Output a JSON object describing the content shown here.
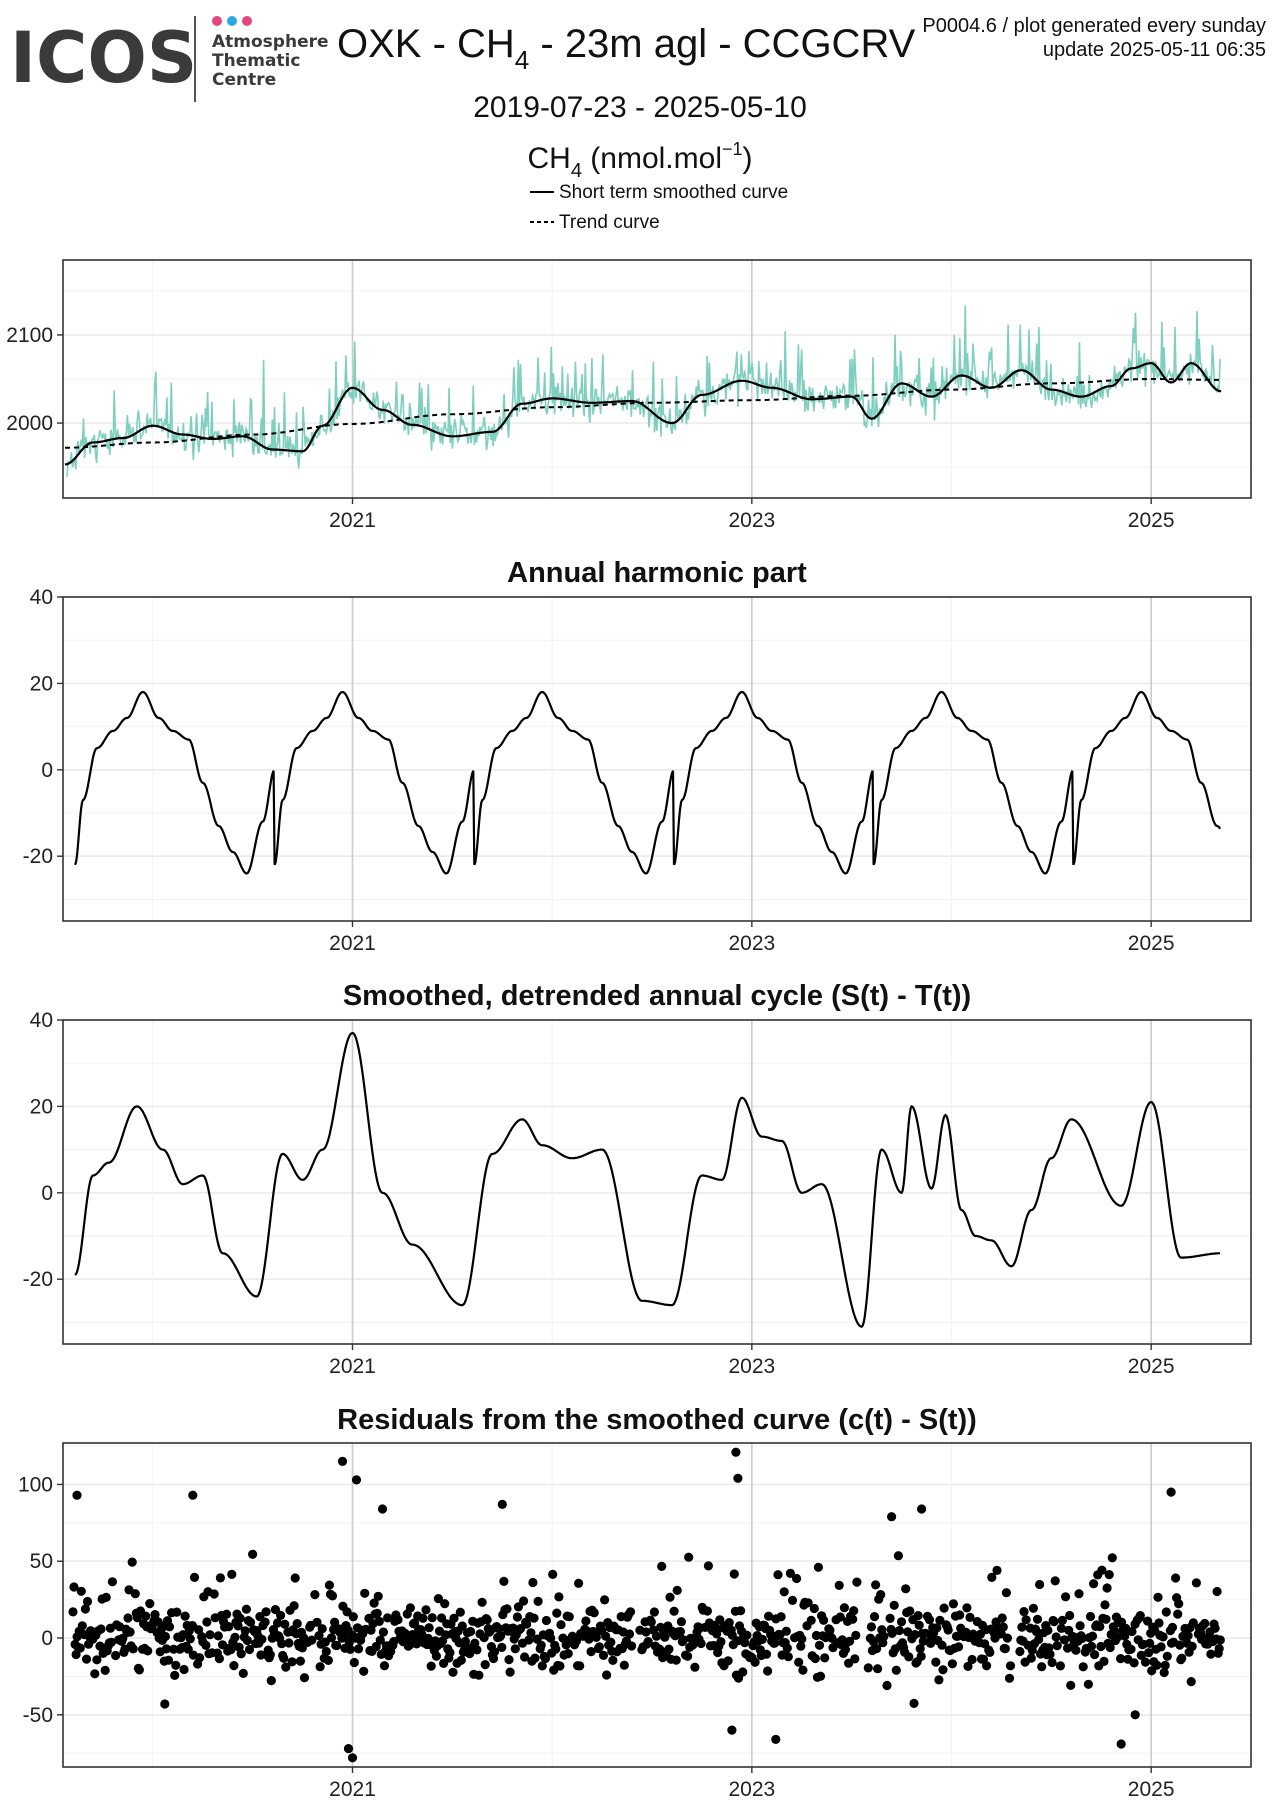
{
  "header": {
    "logo": {
      "word": "ICOS",
      "sub": [
        "Atmosphere",
        "Thematic",
        "Centre"
      ],
      "dot_colors": [
        "#e4467a",
        "#2aa8e0",
        "#e4467a"
      ]
    },
    "title_main": "OXK - CH",
    "title_sub": "4",
    "title_rest": " - 23m agl - CCGCRV",
    "meta_line1": "P0004.6 / plot generated every sunday",
    "meta_line2": "update  2025-05-11 06:35",
    "date_range": "2019-07-23 - 2025-05-10",
    "unit_main": "CH",
    "unit_sub": "4",
    "unit_mid": " (nmol.mol",
    "unit_sup": "−1",
    "unit_end": ")"
  },
  "legend": {
    "solid": "Short term smoothed curve",
    "dashed": "Trend curve"
  },
  "colors": {
    "obs": "#7ecfbf",
    "line": "#000000",
    "grid_major": "#cccccc",
    "grid_minor": "#ebebeb"
  },
  "chart_data": [
    {
      "type": "line",
      "title": "",
      "x_range": [
        2019.55,
        2025.5
      ],
      "ylim": [
        1915,
        2185
      ],
      "yticks": [
        2000,
        2100
      ],
      "xticks": [
        2021,
        2023,
        2025
      ],
      "series": [
        {
          "name": "Short term smoothed curve",
          "style": "solid",
          "x": [
            2019.56,
            2019.7,
            2019.85,
            2020.0,
            2020.15,
            2020.3,
            2020.45,
            2020.6,
            2020.75,
            2020.85,
            2021.0,
            2021.15,
            2021.3,
            2021.5,
            2021.7,
            2021.85,
            2022.0,
            2022.2,
            2022.4,
            2022.6,
            2022.75,
            2022.95,
            2023.1,
            2023.3,
            2023.5,
            2023.6,
            2023.75,
            2023.9,
            2024.05,
            2024.2,
            2024.35,
            2024.5,
            2024.65,
            2024.8,
            2024.9,
            2025.0,
            2025.1,
            2025.2,
            2025.35
          ],
          "y": [
            1953,
            1978,
            1983,
            1997,
            1987,
            1982,
            1985,
            1970,
            1968,
            1997,
            2040,
            2015,
            1998,
            1985,
            1990,
            2022,
            2028,
            2023,
            2025,
            2000,
            2032,
            2048,
            2040,
            2027,
            2030,
            2005,
            2045,
            2030,
            2054,
            2040,
            2060,
            2038,
            2030,
            2042,
            2062,
            2068,
            2046,
            2068,
            2036
          ]
        },
        {
          "name": "Trend curve",
          "style": "dashed",
          "x": [
            2019.56,
            2020.0,
            2020.5,
            2021.0,
            2021.5,
            2022.0,
            2022.5,
            2023.0,
            2023.5,
            2024.0,
            2024.5,
            2025.0,
            2025.35
          ],
          "y": [
            1972,
            1978,
            1987,
            1999,
            2010,
            2018,
            2023,
            2026,
            2031,
            2038,
            2045,
            2050,
            2049
          ]
        }
      ]
    },
    {
      "type": "line",
      "title": "Annual harmonic part",
      "x_range": [
        2019.55,
        2025.5
      ],
      "ylim": [
        -35,
        40
      ],
      "yticks": [
        -20,
        0,
        20,
        40
      ],
      "xticks": [
        2021,
        2023,
        2025
      ],
      "series": [
        {
          "x": [
            2019.61,
            2019.65,
            2019.72,
            2019.8,
            2019.87,
            2019.95,
            2020.03,
            2020.1,
            2020.18,
            2020.25,
            2020.33,
            2020.4,
            2020.47,
            2020.55,
            2020.61
          ],
          "y": [
            -22,
            -7,
            5,
            9,
            12,
            18,
            12,
            9,
            7,
            -3,
            -13,
            -19,
            -24,
            -12,
            0
          ],
          "periodic": true,
          "period": 1.0,
          "x_end": 2025.35
        }
      ]
    },
    {
      "type": "line",
      "title": "Smoothed, detrended annual cycle (S(t) - T(t))",
      "x_range": [
        2019.55,
        2025.5
      ],
      "ylim": [
        -35,
        40
      ],
      "yticks": [
        -20,
        0,
        20,
        40
      ],
      "xticks": [
        2021,
        2023,
        2025
      ],
      "series": [
        {
          "x": [
            2019.61,
            2019.7,
            2019.78,
            2019.92,
            2020.05,
            2020.15,
            2020.25,
            2020.35,
            2020.52,
            2020.65,
            2020.75,
            2020.85,
            2021.0,
            2021.15,
            2021.3,
            2021.55,
            2021.7,
            2021.85,
            2021.95,
            2022.1,
            2022.25,
            2022.45,
            2022.6,
            2022.75,
            2022.85,
            2022.95,
            2023.05,
            2023.15,
            2023.25,
            2023.35,
            2023.55,
            2023.65,
            2023.75,
            2023.8,
            2023.9,
            2023.97,
            2024.05,
            2024.12,
            2024.2,
            2024.3,
            2024.4,
            2024.5,
            2024.6,
            2024.85,
            2025.0,
            2025.15,
            2025.35
          ],
          "y": [
            -19,
            4,
            7,
            20,
            10,
            2,
            4,
            -14,
            -24,
            9,
            3,
            10,
            37,
            0,
            -12,
            -26,
            9,
            17,
            11,
            8,
            10,
            -25,
            -26,
            4,
            3,
            22,
            13,
            12,
            0,
            2,
            -31,
            10,
            0,
            20,
            1,
            18,
            -4,
            -10,
            -11,
            -17,
            -4,
            8,
            17,
            -3,
            21,
            -15,
            -14
          ]
        }
      ]
    },
    {
      "type": "scatter",
      "title": "Residuals from the smoothed curve (c(t) - S(t))",
      "x_range": [
        2019.55,
        2025.5
      ],
      "ylim": [
        -84,
        127
      ],
      "yticks": [
        -50,
        0,
        50,
        100
      ],
      "xticks": [
        2021,
        2023,
        2025
      ],
      "x_start": 2019.6,
      "x_end": 2025.35,
      "gaps": [
        [
          2022.4,
          2022.43
        ],
        [
          2023.53,
          2023.58
        ],
        [
          2024.3,
          2024.34
        ]
      ],
      "highlights": [
        {
          "x": 2019.62,
          "y": 93
        },
        {
          "x": 2020.2,
          "y": 93
        },
        {
          "x": 2020.95,
          "y": 115
        },
        {
          "x": 2021.02,
          "y": 103
        },
        {
          "x": 2021.15,
          "y": 84
        },
        {
          "x": 2021.75,
          "y": 87
        },
        {
          "x": 2022.92,
          "y": 121
        },
        {
          "x": 2022.93,
          "y": 104
        },
        {
          "x": 2023.7,
          "y": 79
        },
        {
          "x": 2023.85,
          "y": 84
        },
        {
          "x": 2025.1,
          "y": 95
        },
        {
          "x": 2020.98,
          "y": -72
        },
        {
          "x": 2021.0,
          "y": -78
        },
        {
          "x": 2022.9,
          "y": -60
        },
        {
          "x": 2023.12,
          "y": -66
        },
        {
          "x": 2024.85,
          "y": -69
        },
        {
          "x": 2024.92,
          "y": -50
        },
        {
          "x": 2020.06,
          "y": -43
        }
      ]
    }
  ]
}
